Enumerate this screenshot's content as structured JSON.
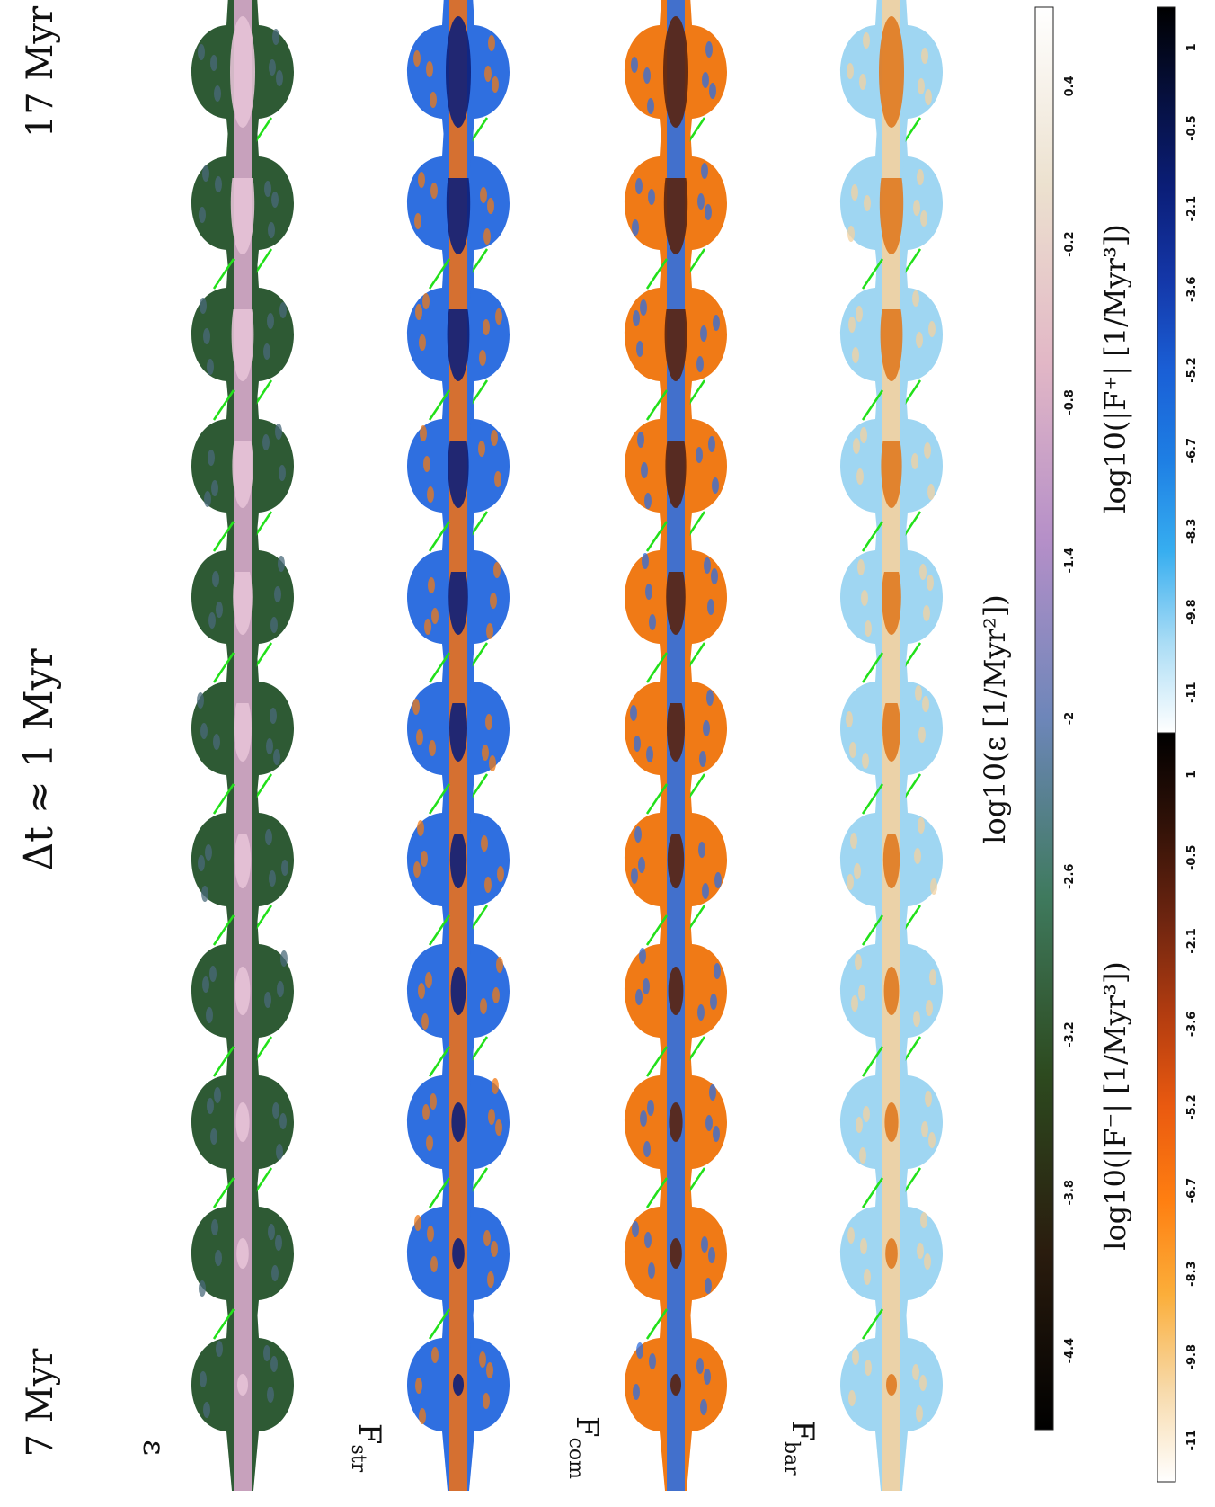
{
  "figure": {
    "header": {
      "time_start": "7 Myr",
      "time_step": "Δt ≈ 1 Myr",
      "time_end": "17 Myr"
    },
    "rows": [
      {
        "label": "ε",
        "colormap": "epsilon"
      },
      {
        "label": "F_str",
        "colormap": "signed"
      },
      {
        "label": "F_com",
        "colormap": "signed"
      },
      {
        "label": "F_bar",
        "colormap": "signed"
      }
    ],
    "snapshot_count": 11,
    "arrow_color": "#22e01a",
    "colorbars": {
      "epsilon": {
        "label": "log10(ε [1/Myr²])",
        "ticks": [
          "-4.4",
          "-3.8",
          "-3.2",
          "-2.6",
          "-2",
          "-1.4",
          "-0.8",
          "-0.2",
          "0.4"
        ],
        "colors": [
          "#000000",
          "#2a1c0e",
          "#2d4a1f",
          "#3f7a5e",
          "#6d86b9",
          "#b58fc8",
          "#e2b7c6",
          "#ece1cf",
          "#ffffff"
        ]
      },
      "negative": {
        "label": "log10(|F⁻| [1/Myr³])",
        "ticks": [
          "-11",
          "-9.8",
          "-8.3",
          "-6.7",
          "-5.2",
          "-3.6",
          "-2.1",
          "-0.5",
          "1"
        ],
        "colors": [
          "#ffffff",
          "#f7d9a8",
          "#fbae3a",
          "#ff7f11",
          "#ea5a10",
          "#b23c10",
          "#6e2510",
          "#321208",
          "#000000"
        ]
      },
      "positive": {
        "label": "log10(|F⁺| [1/Myr³])",
        "ticks": [
          "-11",
          "-9.8",
          "-8.3",
          "-6.7",
          "-5.2",
          "-3.6",
          "-2.1",
          "-0.5",
          "1"
        ],
        "colors": [
          "#ffffff",
          "#a9dcf5",
          "#37aef0",
          "#1e7fe4",
          "#1a5fd6",
          "#1437a8",
          "#0b1e78",
          "#06103f",
          "#000000"
        ]
      }
    }
  }
}
